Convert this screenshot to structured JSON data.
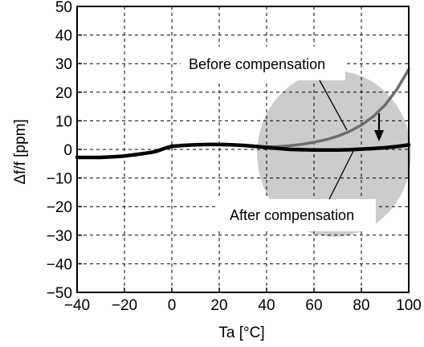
{
  "chart_data": {
    "type": "line",
    "title": "",
    "xlabel": "Ta [°C]",
    "ylabel": "Δf/f [ppm]",
    "xlim": [
      -40,
      100
    ],
    "ylim": [
      -50,
      50
    ],
    "x_ticks": [
      -40,
      -20,
      0,
      20,
      40,
      60,
      80,
      100
    ],
    "y_ticks": [
      -50,
      -40,
      -30,
      -20,
      -10,
      0,
      10,
      20,
      30,
      40,
      50
    ],
    "x_tick_labels": [
      "−40",
      "−20",
      "0",
      "20",
      "40",
      "60",
      "80",
      "100"
    ],
    "y_tick_labels": [
      "−50",
      "−40",
      "−30",
      "−20",
      "−10",
      "0",
      "10",
      "20",
      "30",
      "40",
      "50"
    ],
    "grid": true,
    "grid_style": "dashed",
    "series": [
      {
        "name": "Before compensation",
        "color": "#6e6e6e",
        "x": [
          38,
          45,
          50,
          55,
          60,
          65,
          70,
          75,
          80,
          85,
          90,
          95,
          100
        ],
        "y": [
          0.8,
          1.0,
          1.3,
          1.8,
          2.5,
          3.4,
          4.6,
          6.3,
          8.5,
          11.5,
          15.5,
          21,
          28
        ]
      },
      {
        "name": "After compensation",
        "color": "#000000",
        "x": [
          -40,
          -35,
          -30,
          -25,
          -20,
          -15,
          -10,
          -7,
          -5,
          -3,
          0,
          5,
          10,
          15,
          20,
          25,
          30,
          35,
          40,
          45,
          50,
          55,
          60,
          65,
          70,
          75,
          80,
          85,
          90,
          95,
          100
        ],
        "y": [
          -2.8,
          -2.8,
          -2.8,
          -2.6,
          -2.3,
          -1.8,
          -1.2,
          -0.8,
          -0.2,
          0.4,
          1.1,
          1.4,
          1.6,
          1.7,
          1.7,
          1.6,
          1.4,
          1.1,
          0.7,
          0.3,
          0.0,
          -0.1,
          -0.2,
          -0.2,
          -0.2,
          -0.1,
          0.1,
          0.3,
          0.6,
          1.0,
          1.6
        ]
      }
    ],
    "annotations": {
      "before_label": "Before compensation",
      "after_label": "After compensation"
    },
    "highlight_region_color": "#cccccc"
  }
}
